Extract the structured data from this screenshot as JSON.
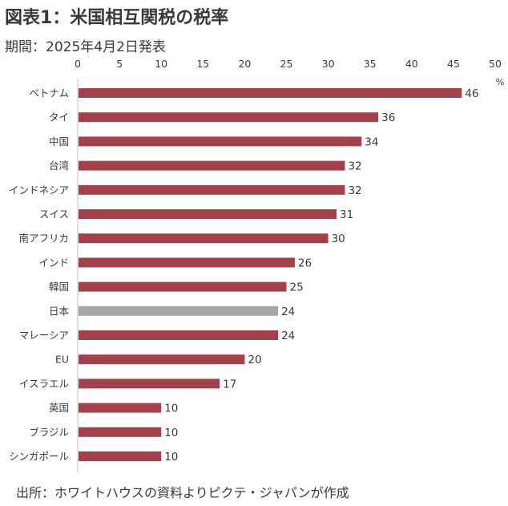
{
  "title": "図表1：米国相互関税の税率",
  "subtitle": "期間：2025年4月2日発表",
  "source": "出所：ホワイトハウスの資料よりピクテ・ジャパンが作成",
  "colors": {
    "bar": "#a3404a",
    "highlight": "#a6a6a6",
    "axis": "#bfbfbf"
  },
  "chart_data": {
    "type": "bar",
    "orientation": "horizontal",
    "unit": "%",
    "categories": [
      "ベトナム",
      "タイ",
      "中国",
      "台湾",
      "インドネシア",
      "スイス",
      "南アフリカ",
      "インド",
      "韓国",
      "日本",
      "マレーシア",
      "EU",
      "イスラエル",
      "英国",
      "ブラジル",
      "シンガポール"
    ],
    "values": [
      46,
      36,
      34,
      32,
      32,
      31,
      30,
      26,
      25,
      24,
      24,
      20,
      17,
      10,
      10,
      10
    ],
    "highlighted_category": "日本",
    "xlim": [
      0,
      50
    ],
    "xticks": [
      0,
      5,
      10,
      15,
      20,
      25,
      30,
      35,
      40,
      45,
      50
    ],
    "x_axis_position": "top",
    "grid": false,
    "data_labels": true
  }
}
